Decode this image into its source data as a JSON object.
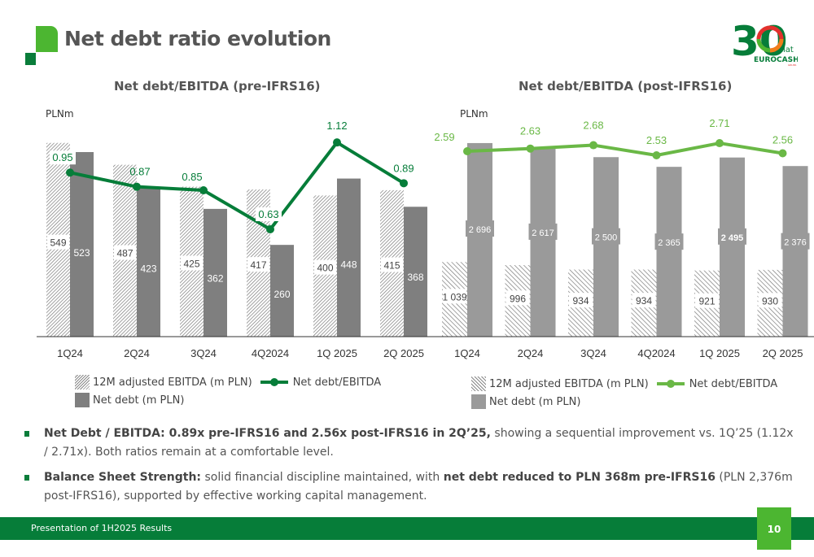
{
  "header": {
    "title": "Net debt ratio evolution",
    "brand": {
      "number": "30",
      "suffix": "lat",
      "name": "EUROCASH",
      "sub": "GRUPA"
    }
  },
  "colors": {
    "dark_green": "#067d39",
    "light_green": "#4cb631",
    "bar_dark_gray": "#7f7f7f",
    "bar_light_gray": "#9a9a9a",
    "logo_red": "#e3312d",
    "logo_orange": "#f07d1a"
  },
  "chart_data": [
    {
      "type": "bar",
      "title": "Net debt/EBITDA (pre-IFRS16)",
      "unit_label": "PLNm",
      "categories": [
        "1Q24",
        "2Q24",
        "3Q24",
        "4Q2024",
        "1Q 2025",
        "2Q 2025"
      ],
      "series": [
        {
          "name": "12M adjusted EBITDA (m PLN)",
          "kind": "bar-hatched",
          "values": [
            549,
            487,
            425,
            417,
            400,
            415
          ],
          "labels": [
            "549",
            "487",
            "425",
            "417",
            "400",
            "415"
          ]
        },
        {
          "name": "Net debt (m PLN)",
          "kind": "bar-solid",
          "values": [
            523,
            423,
            362,
            260,
            448,
            368
          ],
          "labels": [
            "523",
            "423",
            "362",
            "260",
            "448",
            "368"
          ]
        },
        {
          "name": "Net debt/EBITDA",
          "kind": "line",
          "values": [
            0.95,
            0.87,
            0.85,
            0.63,
            1.12,
            0.89
          ],
          "labels": [
            "0.95",
            "0.87",
            "0.85",
            "0.63",
            "1.12",
            "0.89"
          ]
        }
      ],
      "legend": [
        "12M adjusted EBITDA (m PLN)",
        "Net debt/EBITDA",
        "Net debt (m PLN)"
      ],
      "legend_position": "bottom",
      "grid": false
    },
    {
      "type": "bar",
      "title": "Net debt/EBITDA (post-IFRS16)",
      "unit_label": "PLNm",
      "categories": [
        "1Q24",
        "2Q24",
        "3Q24",
        "4Q2024",
        "1Q 2025",
        "2Q 2025"
      ],
      "series": [
        {
          "name": "12M adjusted EBITDA (m PLN)",
          "kind": "bar-hatched",
          "values": [
            1039,
            996,
            934,
            934,
            921,
            930
          ],
          "labels": [
            "1 039",
            "996",
            "934",
            "934",
            "921",
            "930"
          ]
        },
        {
          "name": "Net debt (m PLN)",
          "kind": "bar-solid",
          "values": [
            2696,
            2617,
            2500,
            2365,
            2495,
            2376
          ],
          "labels": [
            "2 696",
            "2 617",
            "2 500",
            "2 365",
            "2 495",
            "2 376"
          ]
        },
        {
          "name": "Net debt/EBITDA",
          "kind": "line",
          "values": [
            2.59,
            2.63,
            2.68,
            2.53,
            2.71,
            2.56
          ],
          "labels": [
            "2.59",
            "2.63",
            "2.68",
            "2.53",
            "2.71",
            "2.56"
          ]
        }
      ],
      "legend": [
        "12M adjusted EBITDA (m PLN)",
        "Net debt/EBITDA",
        "Net debt (m PLN)"
      ],
      "legend_position": "bottom",
      "grid": false
    }
  ],
  "bullets": [
    {
      "bold": "Net Debt / EBITDA: 0.89x pre-IFRS16 and 2.56x post-IFRS16 in 2Q’25,",
      "text": " showing a sequential improvement vs. 1Q’25 (1.12x / 2.71x). Both ratios remain at a comfortable level."
    },
    {
      "bold": "Balance Sheet Strength:",
      "text": " solid financial discipline maintained, with ",
      "bold2": "net debt reduced to PLN 368m pre-IFRS16",
      "text2": " (PLN 2,376m post-IFRS16), supported by effective working capital management."
    }
  ],
  "footer": {
    "text": "Presentation of 1H2025 Results",
    "page_number": "10"
  }
}
